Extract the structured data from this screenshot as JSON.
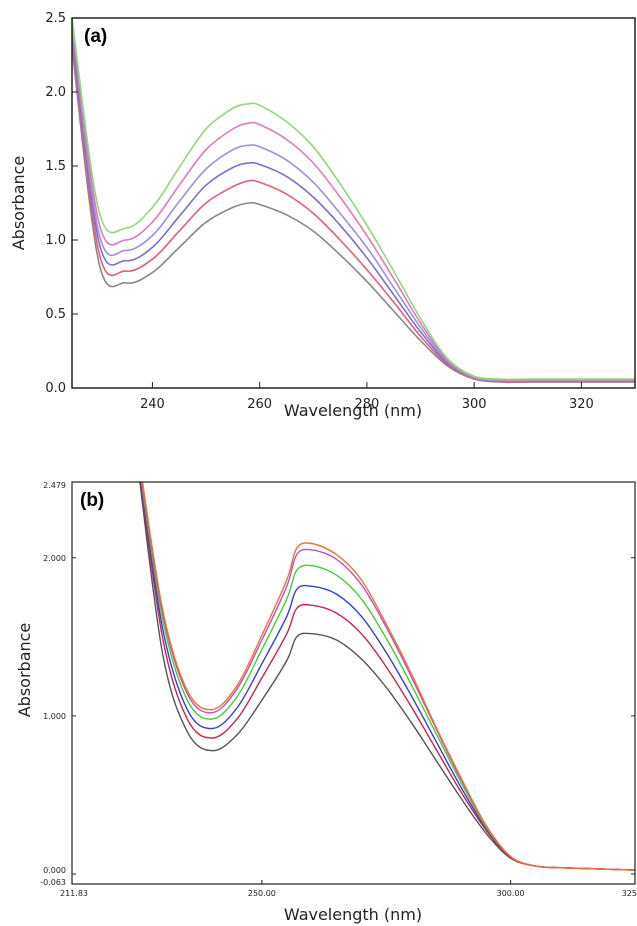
{
  "chart_data": [
    {
      "type": "line",
      "panel_label": "(a)",
      "xlabel": "Wavelength (nm)",
      "ylabel": "Absorbance",
      "xlim": [
        225,
        330
      ],
      "ylim": [
        0,
        2.5
      ],
      "x_ticks": [
        240,
        260,
        280,
        300,
        320
      ],
      "y_ticks": [
        0.0,
        0.5,
        1.0,
        1.5,
        2.0,
        2.5
      ],
      "y_tick_labels": [
        "0.0",
        "0.5",
        "1.0",
        "1.5",
        "2.0",
        "2.5"
      ],
      "grid": false,
      "x": [
        225,
        230,
        235,
        240,
        245,
        250,
        255,
        258,
        260,
        265,
        270,
        275,
        280,
        285,
        290,
        295,
        300,
        305,
        310,
        320,
        330
      ],
      "series": [
        {
          "color": "#888888",
          "values": [
            2.3,
            0.85,
            0.71,
            0.78,
            0.95,
            1.12,
            1.22,
            1.25,
            1.24,
            1.17,
            1.06,
            0.9,
            0.72,
            0.52,
            0.32,
            0.15,
            0.06,
            0.04,
            0.04,
            0.04,
            0.04
          ]
        },
        {
          "color": "#e0607a",
          "values": [
            2.35,
            0.92,
            0.79,
            0.87,
            1.06,
            1.25,
            1.36,
            1.4,
            1.39,
            1.31,
            1.18,
            1.0,
            0.8,
            0.58,
            0.35,
            0.16,
            0.065,
            0.045,
            0.045,
            0.045,
            0.045
          ]
        },
        {
          "color": "#7a6fd0",
          "values": [
            2.4,
            0.99,
            0.86,
            0.95,
            1.16,
            1.37,
            1.49,
            1.52,
            1.51,
            1.43,
            1.29,
            1.1,
            0.88,
            0.63,
            0.38,
            0.17,
            0.07,
            0.05,
            0.05,
            0.05,
            0.05
          ]
        },
        {
          "color": "#9b8fe0",
          "values": [
            2.45,
            1.05,
            0.93,
            1.03,
            1.26,
            1.48,
            1.61,
            1.64,
            1.63,
            1.54,
            1.39,
            1.18,
            0.95,
            0.68,
            0.41,
            0.18,
            0.07,
            0.05,
            0.05,
            0.05,
            0.05
          ]
        },
        {
          "color": "#e07ab8",
          "values": [
            2.48,
            1.12,
            1.0,
            1.12,
            1.37,
            1.61,
            1.75,
            1.79,
            1.78,
            1.68,
            1.52,
            1.29,
            1.03,
            0.74,
            0.44,
            0.19,
            0.075,
            0.055,
            0.055,
            0.055,
            0.055
          ]
        },
        {
          "color": "#90d87a",
          "values": [
            2.5,
            1.2,
            1.08,
            1.22,
            1.49,
            1.75,
            1.89,
            1.92,
            1.91,
            1.8,
            1.63,
            1.38,
            1.1,
            0.79,
            0.47,
            0.2,
            0.08,
            0.06,
            0.06,
            0.06,
            0.06
          ]
        }
      ]
    },
    {
      "type": "line",
      "panel_label": "(b)",
      "xlabel": "Wavelength (nm)",
      "ylabel": "Absorbance",
      "xlim": [
        211.83,
        325
      ],
      "ylim": [
        -0.063,
        2.479
      ],
      "x_ticks": [
        211.83,
        250,
        300,
        325
      ],
      "x_tick_labels": [
        "211.83",
        "250.00",
        "300.00",
        "325"
      ],
      "y_ticks": [
        -0.063,
        0.0,
        1.0,
        2.0,
        2.479
      ],
      "y_tick_labels": [
        "-0.063",
        "0.000",
        "1.000",
        "2.000",
        "2.479"
      ],
      "grid": false,
      "x": [
        225,
        230,
        235,
        240,
        245,
        250,
        255,
        257,
        260,
        265,
        270,
        275,
        280,
        285,
        290,
        295,
        300,
        305,
        310,
        315,
        320,
        325
      ],
      "series": [
        {
          "color": "#555555",
          "values": [
            2.6,
            1.4,
            0.9,
            0.78,
            0.88,
            1.1,
            1.35,
            1.5,
            1.52,
            1.48,
            1.36,
            1.18,
            0.96,
            0.72,
            0.48,
            0.26,
            0.1,
            0.05,
            0.04,
            0.035,
            0.03,
            0.025
          ]
        },
        {
          "color": "#d02050",
          "values": [
            2.62,
            1.5,
            0.98,
            0.86,
            0.98,
            1.24,
            1.52,
            1.68,
            1.7,
            1.65,
            1.52,
            1.31,
            1.06,
            0.79,
            0.52,
            0.28,
            0.105,
            0.05,
            0.04,
            0.035,
            0.03,
            0.025
          ]
        },
        {
          "color": "#3040d8",
          "values": [
            2.64,
            1.56,
            1.04,
            0.92,
            1.05,
            1.33,
            1.63,
            1.8,
            1.82,
            1.77,
            1.63,
            1.4,
            1.13,
            0.84,
            0.55,
            0.29,
            0.108,
            0.05,
            0.04,
            0.035,
            0.03,
            0.025
          ]
        },
        {
          "color": "#40d030",
          "values": [
            2.66,
            1.62,
            1.1,
            0.98,
            1.12,
            1.42,
            1.74,
            1.92,
            1.95,
            1.89,
            1.74,
            1.49,
            1.2,
            0.89,
            0.58,
            0.3,
            0.11,
            0.05,
            0.04,
            0.035,
            0.03,
            0.025
          ]
        },
        {
          "color": "#c050c0",
          "values": [
            2.68,
            1.66,
            1.14,
            1.02,
            1.17,
            1.48,
            1.82,
            2.02,
            2.05,
            1.99,
            1.83,
            1.56,
            1.25,
            0.92,
            0.6,
            0.31,
            0.11,
            0.05,
            0.04,
            0.035,
            0.03,
            0.025
          ]
        },
        {
          "color": "#f07030",
          "values": [
            2.7,
            1.68,
            1.16,
            1.04,
            1.19,
            1.51,
            1.86,
            2.06,
            2.09,
            2.02,
            1.86,
            1.58,
            1.27,
            0.93,
            0.61,
            0.31,
            0.11,
            0.05,
            0.04,
            0.035,
            0.03,
            0.025
          ]
        }
      ]
    }
  ]
}
